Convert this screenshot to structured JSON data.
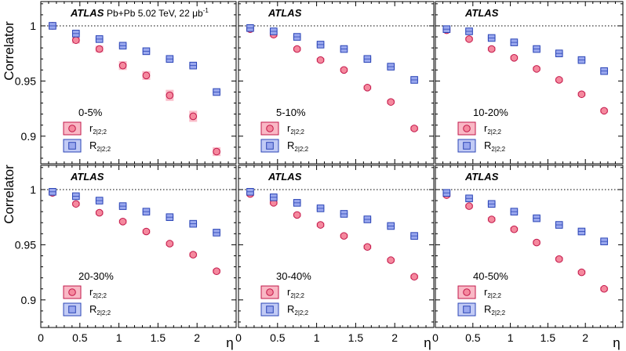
{
  "chart_data": {
    "type": "scatter",
    "experiment": "ATLAS",
    "collision_label": "Pb+Pb 5.02 TeV, 22 μb",
    "luminosity_exponent": "-1",
    "xlabel": "η",
    "ylabel": "Correlator",
    "xlim": [
      0,
      2.5
    ],
    "ylim": [
      0.875,
      1.022
    ],
    "x_ticks": [
      {
        "value": 0,
        "label": "0"
      },
      {
        "value": 0.5,
        "label": "0.5"
      },
      {
        "value": 1,
        "label": "1"
      },
      {
        "value": 1.5,
        "label": "1.5"
      },
      {
        "value": 2,
        "label": "2"
      }
    ],
    "y_ticks": [
      {
        "value": 0.9,
        "label": "0.9"
      },
      {
        "value": 0.95,
        "label": "0.95"
      },
      {
        "value": 1.0,
        "label": "1"
      }
    ],
    "reference_line": 1.0,
    "x": [
      0.15,
      0.45,
      0.75,
      1.05,
      1.35,
      1.65,
      1.95,
      2.25
    ],
    "legend": {
      "r": {
        "main": "r",
        "sub": "2|2;2",
        "color": "#f2607f"
      },
      "R": {
        "main": "R",
        "sub": "2|2;2",
        "color": "#6f86e8"
      }
    },
    "colors": {
      "r_fill": "#f5899e",
      "r_stroke": "#c2174a",
      "R_fill": "#9aa8ee",
      "R_stroke": "#2b45b6",
      "frame": "#000000"
    },
    "panels": [
      {
        "centrality": "0-5%",
        "show_collision_label": true,
        "series": [
          {
            "name": "r_{2|2;2}",
            "values": [
              1.0,
              0.987,
              0.979,
              0.964,
              0.955,
              0.937,
              0.918,
              0.886
            ],
            "errors": [
              0.003,
              0.003,
              0.003,
              0.004,
              0.004,
              0.005,
              0.005,
              0.004
            ]
          },
          {
            "name": "R_{2|2;2}",
            "values": [
              1.0,
              0.993,
              0.988,
              0.982,
              0.977,
              0.97,
              0.964,
              0.94
            ],
            "errors": [
              0.002,
              0.002,
              0.002,
              0.002,
              0.002,
              0.002,
              0.002,
              0.002
            ]
          }
        ]
      },
      {
        "centrality": "5-10%",
        "show_collision_label": false,
        "series": [
          {
            "name": "r_{2|2;2}",
            "values": [
              0.997,
              0.992,
              0.979,
              0.969,
              0.96,
              0.944,
              0.931,
              0.907
            ],
            "errors": [
              0.002,
              0.002,
              0.002,
              0.002,
              0.002,
              0.002,
              0.002,
              0.002
            ]
          },
          {
            "name": "R_{2|2;2}",
            "values": [
              0.998,
              0.995,
              0.99,
              0.983,
              0.979,
              0.97,
              0.963,
              0.951
            ],
            "errors": [
              0.002,
              0.002,
              0.002,
              0.002,
              0.002,
              0.002,
              0.002,
              0.002
            ]
          }
        ]
      },
      {
        "centrality": "10-20%",
        "show_collision_label": false,
        "series": [
          {
            "name": "r_{2|2;2}",
            "values": [
              0.996,
              0.988,
              0.979,
              0.971,
              0.961,
              0.951,
              0.938,
              0.923
            ],
            "errors": [
              0.002,
              0.002,
              0.002,
              0.002,
              0.002,
              0.002,
              0.002,
              0.002
            ]
          },
          {
            "name": "R_{2|2;2}",
            "values": [
              0.997,
              0.995,
              0.989,
              0.985,
              0.979,
              0.975,
              0.969,
              0.959
            ],
            "errors": [
              0.002,
              0.002,
              0.002,
              0.002,
              0.002,
              0.002,
              0.002,
              0.002
            ]
          }
        ]
      },
      {
        "centrality": "20-30%",
        "show_collision_label": false,
        "series": [
          {
            "name": "r_{2|2;2}",
            "values": [
              0.997,
              0.987,
              0.979,
              0.971,
              0.962,
              0.951,
              0.941,
              0.926
            ],
            "errors": [
              0.002,
              0.002,
              0.002,
              0.002,
              0.002,
              0.002,
              0.002,
              0.002
            ]
          },
          {
            "name": "R_{2|2;2}",
            "values": [
              0.998,
              0.994,
              0.99,
              0.985,
              0.98,
              0.975,
              0.969,
              0.961
            ],
            "errors": [
              0.002,
              0.002,
              0.002,
              0.002,
              0.002,
              0.002,
              0.002,
              0.002
            ]
          }
        ]
      },
      {
        "centrality": "30-40%",
        "show_collision_label": false,
        "series": [
          {
            "name": "r_{2|2;2}",
            "values": [
              0.996,
              0.988,
              0.977,
              0.968,
              0.958,
              0.948,
              0.936,
              0.921
            ],
            "errors": [
              0.002,
              0.002,
              0.002,
              0.002,
              0.002,
              0.002,
              0.002,
              0.002
            ]
          },
          {
            "name": "R_{2|2;2}",
            "values": [
              0.998,
              0.993,
              0.988,
              0.983,
              0.978,
              0.973,
              0.967,
              0.958
            ],
            "errors": [
              0.002,
              0.002,
              0.002,
              0.002,
              0.002,
              0.002,
              0.002,
              0.002
            ]
          }
        ]
      },
      {
        "centrality": "40-50%",
        "show_collision_label": false,
        "series": [
          {
            "name": "r_{2|2;2}",
            "values": [
              0.995,
              0.985,
              0.973,
              0.964,
              0.952,
              0.937,
              0.925,
              0.91
            ],
            "errors": [
              0.002,
              0.002,
              0.002,
              0.002,
              0.002,
              0.002,
              0.002,
              0.002
            ]
          },
          {
            "name": "R_{2|2;2}",
            "values": [
              0.997,
              0.992,
              0.987,
              0.98,
              0.974,
              0.968,
              0.962,
              0.953
            ],
            "errors": [
              0.002,
              0.002,
              0.002,
              0.002,
              0.002,
              0.002,
              0.002,
              0.002
            ]
          }
        ]
      }
    ]
  }
}
